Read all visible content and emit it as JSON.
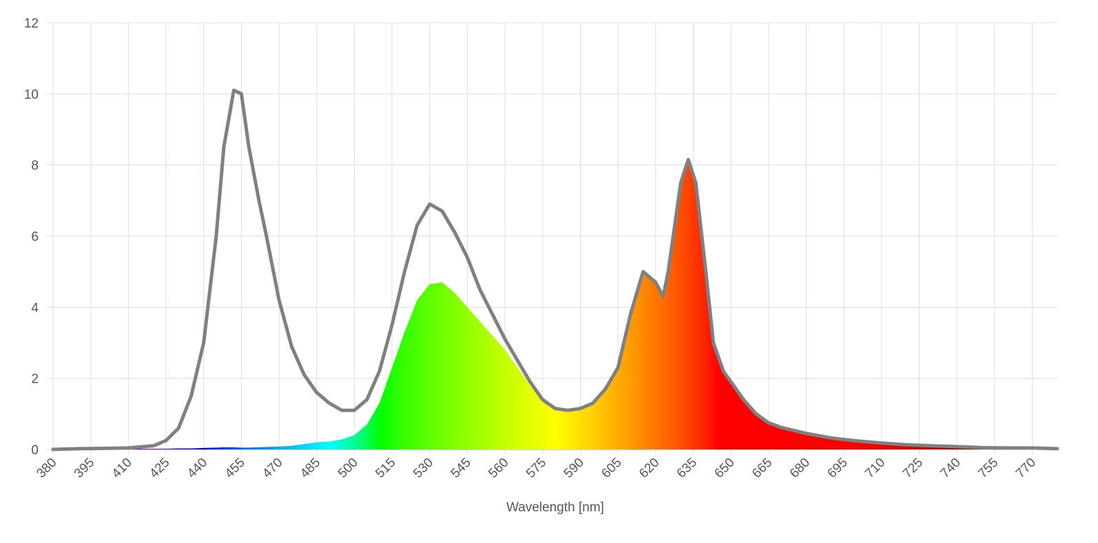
{
  "chart_data": {
    "type": "line",
    "x_label": "Wavelength [nm]",
    "x": [
      380,
      390,
      400,
      410,
      420,
      425,
      430,
      435,
      440,
      445,
      448,
      452,
      455,
      458,
      462,
      465,
      470,
      475,
      480,
      485,
      490,
      495,
      500,
      505,
      510,
      515,
      520,
      525,
      530,
      535,
      540,
      545,
      550,
      555,
      560,
      565,
      570,
      575,
      580,
      585,
      590,
      595,
      600,
      605,
      610,
      615,
      620,
      623,
      625,
      630,
      633,
      636,
      640,
      643,
      647,
      650,
      655,
      660,
      665,
      670,
      680,
      690,
      700,
      710,
      720,
      730,
      740,
      750,
      760,
      770,
      780
    ],
    "series": [
      {
        "fill": "spectrum",
        "area": true,
        "values": [
          0.01,
          0.02,
          0.02,
          0.02,
          0.02,
          0.02,
          0.03,
          0.03,
          0.04,
          0.05,
          0.06,
          0.06,
          0.05,
          0.05,
          0.06,
          0.07,
          0.08,
          0.1,
          0.15,
          0.2,
          0.22,
          0.28,
          0.4,
          0.7,
          1.3,
          2.3,
          3.3,
          4.2,
          4.65,
          4.7,
          4.4,
          4.0,
          3.6,
          3.2,
          2.8,
          2.3,
          1.8,
          1.4,
          1.15,
          1.1,
          1.15,
          1.3,
          1.7,
          2.3,
          3.8,
          5.0,
          4.7,
          4.3,
          5.0,
          7.5,
          8.15,
          7.5,
          5.0,
          3.0,
          2.2,
          1.9,
          1.4,
          1.0,
          0.75,
          0.62,
          0.45,
          0.32,
          0.24,
          0.18,
          0.13,
          0.1,
          0.08,
          0.05,
          0.04,
          0.04,
          0.02
        ]
      },
      {
        "color": "#808080",
        "values": [
          0,
          0.02,
          0.03,
          0.04,
          0.1,
          0.25,
          0.6,
          1.5,
          3,
          6,
          8.5,
          10.1,
          10,
          8.5,
          7,
          6,
          4.2,
          2.9,
          2.1,
          1.6,
          1.3,
          1.1,
          1.1,
          1.4,
          2.2,
          3.5,
          5,
          6.3,
          6.9,
          6.7,
          6.1,
          5.4,
          4.5,
          3.8,
          3.1,
          2.5,
          1.9,
          1.4,
          1.15,
          1.1,
          1.15,
          1.3,
          1.7,
          2.3,
          3.8,
          5.0,
          4.7,
          4.3,
          5.0,
          7.5,
          8.15,
          7.5,
          5.0,
          3.0,
          2.2,
          1.9,
          1.4,
          1.0,
          0.75,
          0.62,
          0.45,
          0.32,
          0.24,
          0.18,
          0.13,
          0.1,
          0.08,
          0.05,
          0.04,
          0.04,
          0.02
        ]
      }
    ],
    "xlim": [
      380,
      780
    ],
    "xticks": [
      380,
      395,
      410,
      425,
      440,
      455,
      470,
      485,
      500,
      515,
      530,
      545,
      560,
      575,
      590,
      605,
      620,
      635,
      650,
      665,
      680,
      695,
      710,
      725,
      740,
      755,
      770
    ],
    "ylim": [
      0,
      12
    ],
    "yticks": [
      0,
      2,
      4,
      6,
      8,
      10,
      12
    ],
    "grid": true
  }
}
